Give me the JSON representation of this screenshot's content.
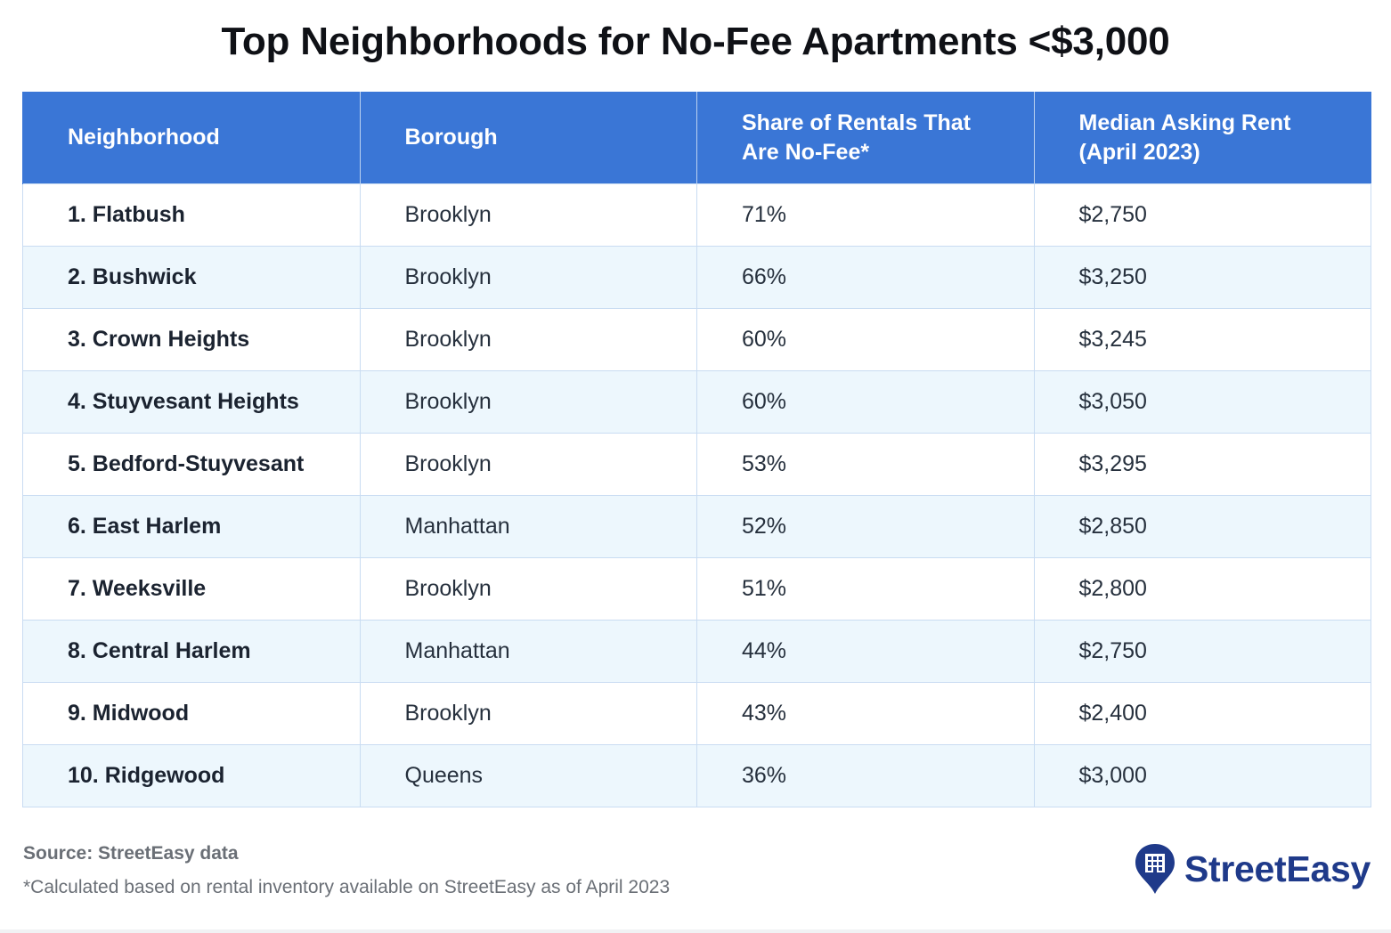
{
  "chart_data": {
    "type": "table",
    "title": "Top Neighborhoods for No-Fee Apartments <$3,000",
    "columns": [
      "Neighborhood",
      "Borough",
      "Share of Rentals That Are No-Fee*",
      "Median Asking Rent (April 2023)"
    ],
    "rows": [
      [
        "1. Flatbush",
        "Brooklyn",
        "71%",
        "$2,750"
      ],
      [
        "2. Bushwick",
        "Brooklyn",
        "66%",
        "$3,250"
      ],
      [
        "3. Crown Heights",
        "Brooklyn",
        "60%",
        "$3,245"
      ],
      [
        "4. Stuyvesant Heights",
        "Brooklyn",
        "60%",
        "$3,050"
      ],
      [
        "5. Bedford-Stuyvesant",
        "Brooklyn",
        "53%",
        "$3,295"
      ],
      [
        "6. East Harlem",
        "Manhattan",
        "52%",
        "$2,850"
      ],
      [
        "7. Weeksville",
        "Brooklyn",
        "51%",
        "$2,800"
      ],
      [
        "8. Central Harlem",
        "Manhattan",
        "44%",
        "$2,750"
      ],
      [
        "9. Midwood",
        "Brooklyn",
        "43%",
        "$2,400"
      ],
      [
        "10. Ridgewood",
        "Queens",
        "36%",
        "$3,000"
      ]
    ],
    "header_color": "#3a76d6",
    "stripe_color": "#edf7fd"
  },
  "header": {
    "col0": "Neighborhood",
    "col1": "Borough",
    "col2_line1": "Share of Rentals That",
    "col2_line2": "Are No-Fee*",
    "col3_line1": "Median Asking Rent",
    "col3_line2": "(April 2023)"
  },
  "footer": {
    "source": "Source: StreetEasy data",
    "footnote": "*Calculated based on rental inventory available on StreetEasy as of April 2023",
    "logo_text": "StreetEasy",
    "logo_icon": "building-pin-icon",
    "logo_color": "#1f3a8a"
  }
}
